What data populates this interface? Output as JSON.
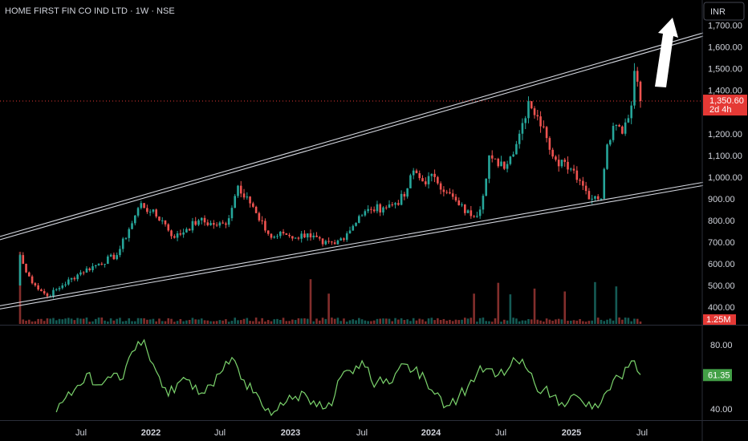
{
  "header": {
    "title": "HOME FIRST FIN CO IND LTD · 1W · NSE"
  },
  "currency_button": {
    "label": "INR"
  },
  "price_tag": {
    "value": "1,350.60",
    "countdown": "2d 4h",
    "price": 1350.6
  },
  "volume_tag": {
    "value": "1.25M"
  },
  "rsi_tag": {
    "value": "61.35",
    "rsi": 61.35
  },
  "colors": {
    "up": "#26a69a",
    "down": "#ef5350",
    "rsi": "#7bd36c",
    "price_tag": "#e53935",
    "rsi_tag": "#43a047",
    "trendline": "#d1d4dc",
    "arrow": "#ffffff"
  },
  "chart_data": [
    {
      "type": "candlestick",
      "title": "HOME FIRST FIN CO IND LTD · 1W · NSE",
      "ylim": [
        300,
        1780
      ],
      "yticks": [
        {
          "value": 400,
          "label": "400.00"
        },
        {
          "value": 500,
          "label": "500.00"
        },
        {
          "value": 600,
          "label": "600.00"
        },
        {
          "value": 700,
          "label": "700.00"
        },
        {
          "value": 800,
          "label": "800.00"
        },
        {
          "value": 900,
          "label": "900.00"
        },
        {
          "value": 1000,
          "label": "1,000.00"
        },
        {
          "value": 1100,
          "label": "1,100.00"
        },
        {
          "value": 1200,
          "label": "1,200.00"
        },
        {
          "value": 1400,
          "label": "1,400.00"
        },
        {
          "value": 1500,
          "label": "1,500.00"
        },
        {
          "value": 1600,
          "label": "1,600.00"
        },
        {
          "value": 1700,
          "label": "1,700.00"
        }
      ],
      "xticks": [
        "Jul",
        "2022",
        "Jul",
        "2023",
        "Jul",
        "2024",
        "Jul",
        "2025",
        "Jul"
      ],
      "weeks": 206,
      "anchors": [
        [
          0,
          640
        ],
        [
          2,
          560
        ],
        [
          5,
          500
        ],
        [
          9,
          450
        ],
        [
          14,
          500
        ],
        [
          20,
          560
        ],
        [
          26,
          600
        ],
        [
          32,
          640
        ],
        [
          36,
          760
        ],
        [
          40,
          880
        ],
        [
          43,
          840
        ],
        [
          47,
          800
        ],
        [
          51,
          720
        ],
        [
          55,
          760
        ],
        [
          59,
          800
        ],
        [
          64,
          780
        ],
        [
          68,
          780
        ],
        [
          72,
          960
        ],
        [
          75,
          910
        ],
        [
          79,
          800
        ],
        [
          83,
          720
        ],
        [
          87,
          740
        ],
        [
          91,
          720
        ],
        [
          95,
          740
        ],
        [
          100,
          690
        ],
        [
          104,
          690
        ],
        [
          108,
          740
        ],
        [
          112,
          820
        ],
        [
          116,
          850
        ],
        [
          120,
          860
        ],
        [
          124,
          880
        ],
        [
          127,
          910
        ],
        [
          130,
          1030
        ],
        [
          133,
          980
        ],
        [
          137,
          1000
        ],
        [
          141,
          930
        ],
        [
          145,
          870
        ],
        [
          149,
          820
        ],
        [
          152,
          850
        ],
        [
          155,
          1100
        ],
        [
          158,
          1050
        ],
        [
          161,
          1060
        ],
        [
          165,
          1200
        ],
        [
          168,
          1350
        ],
        [
          171,
          1280
        ],
        [
          174,
          1180
        ],
        [
          177,
          1080
        ],
        [
          180,
          1070
        ],
        [
          183,
          1030
        ],
        [
          186,
          960
        ],
        [
          189,
          900
        ],
        [
          192,
          900
        ],
        [
          194,
          1150
        ],
        [
          197,
          1240
        ],
        [
          199,
          1200
        ],
        [
          202,
          1330
        ],
        [
          203,
          1490
        ],
        [
          204,
          1440
        ],
        [
          205,
          1350.6
        ]
      ],
      "trendlines": [
        {
          "name": "upper",
          "points": [
            [
              0,
              745
            ],
            [
              206,
              1578
            ]
          ]
        },
        {
          "name": "lower",
          "points": [
            [
              0,
              415
            ],
            [
              206,
              920
            ]
          ]
        }
      ],
      "current_price": 1350.6,
      "volume": {
        "last": "1.25M",
        "spikes": [
          [
            0,
            1.0
          ],
          [
            96,
            0.62
          ],
          [
            102,
            0.42
          ],
          [
            150,
            0.42
          ],
          [
            158,
            0.57
          ],
          [
            162,
            0.41
          ],
          [
            170,
            0.49
          ],
          [
            180,
            0.45
          ],
          [
            190,
            0.58
          ],
          [
            197,
            0.52
          ]
        ]
      }
    },
    {
      "type": "line",
      "name": "RSI",
      "ylim": [
        35,
        90
      ],
      "yticks": [
        {
          "value": 40,
          "label": "40.00"
        },
        {
          "value": 80,
          "label": "80.00"
        }
      ],
      "anchors": [
        [
          12,
          38
        ],
        [
          18,
          52
        ],
        [
          22,
          62
        ],
        [
          25,
          55
        ],
        [
          29,
          60
        ],
        [
          33,
          58
        ],
        [
          36,
          72
        ],
        [
          39,
          82
        ],
        [
          41,
          83
        ],
        [
          43,
          70
        ],
        [
          46,
          60
        ],
        [
          49,
          48
        ],
        [
          52,
          56
        ],
        [
          56,
          58
        ],
        [
          60,
          50
        ],
        [
          63,
          55
        ],
        [
          66,
          62
        ],
        [
          69,
          68
        ],
        [
          71,
          70
        ],
        [
          74,
          58
        ],
        [
          77,
          50
        ],
        [
          80,
          42
        ],
        [
          83,
          36
        ],
        [
          86,
          44
        ],
        [
          90,
          46
        ],
        [
          94,
          50
        ],
        [
          97,
          45
        ],
        [
          100,
          40
        ],
        [
          103,
          42
        ],
        [
          106,
          60
        ],
        [
          110,
          62
        ],
        [
          113,
          70
        ],
        [
          116,
          58
        ],
        [
          120,
          56
        ],
        [
          124,
          62
        ],
        [
          127,
          68
        ],
        [
          130,
          64
        ],
        [
          134,
          58
        ],
        [
          138,
          50
        ],
        [
          141,
          42
        ],
        [
          145,
          48
        ],
        [
          148,
          54
        ],
        [
          151,
          62
        ],
        [
          154,
          65
        ],
        [
          157,
          60
        ],
        [
          161,
          64
        ],
        [
          164,
          70
        ],
        [
          167,
          66
        ],
        [
          170,
          56
        ],
        [
          173,
          52
        ],
        [
          176,
          48
        ],
        [
          179,
          44
        ],
        [
          182,
          48
        ],
        [
          186,
          44
        ],
        [
          189,
          40
        ],
        [
          192,
          44
        ],
        [
          195,
          52
        ],
        [
          198,
          60
        ],
        [
          201,
          66
        ],
        [
          203,
          70
        ],
        [
          205,
          61.35
        ]
      ],
      "last": 61.35
    }
  ]
}
